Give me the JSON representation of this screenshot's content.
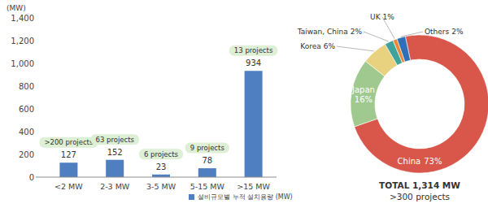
{
  "chart_data": [
    {
      "type": "bar",
      "y_label": "(MW)",
      "categories": [
        "<2 MW",
        "2-3 MW",
        "3-5 MW",
        "5-15 MW",
        ">15 MW"
      ],
      "series": [
        {
          "name": "설비규모별 누적 설치용량 (MW)",
          "color": "#4f7fc0",
          "values": [
            127,
            152,
            23,
            78,
            934
          ]
        }
      ],
      "annotations": [
        ">200 projects",
        "63 projects",
        "6 projects",
        "9 projects",
        "13 projects"
      ],
      "ylim": [
        0,
        1400
      ],
      "yticks": [
        0,
        200,
        400,
        600,
        800,
        {
          "value": 1000,
          "label": "1,000"
        },
        {
          "value": 1200,
          "label": "1,200"
        },
        {
          "value": 1400,
          "label": "1,400"
        }
      ],
      "grid": false,
      "data_labels": true,
      "legend": "bottom"
    },
    {
      "type": "pie",
      "categories": [
        "China",
        "Japan",
        "Korea",
        "Taiwan, China",
        "UK",
        "Others"
      ],
      "values": [
        73,
        16,
        6,
        2,
        1,
        2
      ],
      "value_labels": [
        "73%",
        "16%",
        "6%",
        "2%",
        "1%",
        "2%"
      ],
      "colors": [
        "#d9564a",
        "#9fc98e",
        "#e8d27f",
        "#3fa39b",
        "#e98a3a",
        "#2f6fb8"
      ],
      "data_labels": true,
      "annotations": [
        "TOTAL 1,314 MW",
        ">300 projects"
      ]
    }
  ]
}
